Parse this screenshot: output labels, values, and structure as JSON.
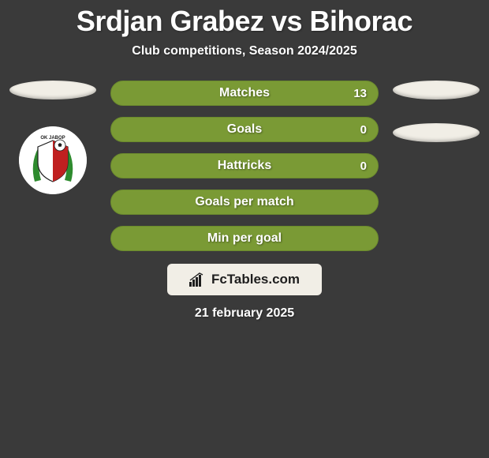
{
  "background_color": "#3a3a3a",
  "title": "Srdjan Grabez vs Bihorac",
  "title_color": "#ffffff",
  "subtitle": "Club competitions, Season 2024/2025",
  "subtitle_color": "#ffffff",
  "date": "21 february 2025",
  "date_color": "#ffffff",
  "ellipse_color": "#f1eee6",
  "bars": {
    "outer_bg": "#7a9a35",
    "outer_border": "#6b8a2d",
    "left_fill": "#5a7a20",
    "label_color": "#ffffff",
    "value_color": "#ffffff",
    "items": [
      {
        "label": "Matches",
        "left": "",
        "right": "13",
        "left_pct": 0
      },
      {
        "label": "Goals",
        "left": "",
        "right": "0",
        "left_pct": 0
      },
      {
        "label": "Hattricks",
        "left": "",
        "right": "0",
        "left_pct": 0
      },
      {
        "label": "Goals per match",
        "left": "",
        "right": "",
        "left_pct": 0
      },
      {
        "label": "Min per goal",
        "left": "",
        "right": "",
        "left_pct": 0
      }
    ]
  },
  "watermark": {
    "bg": "#f1eee6",
    "text": "FcTables.com",
    "icon_color": "#1e1e1e"
  },
  "left_club": {
    "name": "javor-emblem",
    "primary": "#c02020",
    "secondary": "#ffffff",
    "accent": "#2e8b2e",
    "label": "OK JABOP"
  }
}
